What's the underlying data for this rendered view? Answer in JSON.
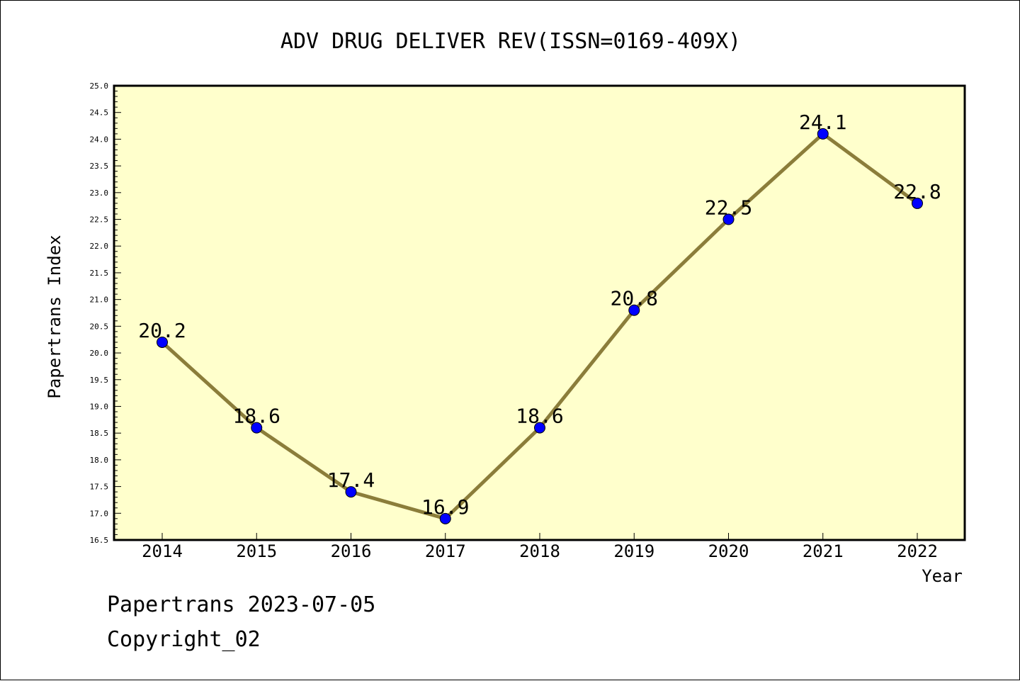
{
  "colors": {
    "plot_background": "#ffffcc",
    "line": "#8b7d3a",
    "marker": "#0000ff",
    "axis": "#000000"
  },
  "chart_data": {
    "type": "line",
    "title": "ADV DRUG DELIVER REV(ISSN=0169-409X)",
    "xlabel": "Year",
    "ylabel": "Papertrans Index",
    "categories": [
      "2014",
      "2015",
      "2016",
      "2017",
      "2018",
      "2019",
      "2020",
      "2021",
      "2022"
    ],
    "series": [
      {
        "values": [
          20.2,
          18.6,
          17.4,
          16.9,
          18.6,
          20.8,
          22.5,
          24.1,
          22.8
        ]
      }
    ],
    "data_labels": [
      "20.2",
      "18.6",
      "17.4",
      "16.9",
      "18.6",
      "20.8",
      "22.5",
      "24.1",
      "22.8"
    ],
    "ylim": [
      16.5,
      25.0
    ],
    "ytick_step": 0.5,
    "yticks": [
      "16.5",
      "17.0",
      "17.5",
      "18.0",
      "18.5",
      "19.0",
      "19.5",
      "20.0",
      "20.5",
      "21.0",
      "21.5",
      "22.0",
      "22.5",
      "23.0",
      "23.5",
      "24.0",
      "24.5",
      "25.0"
    ],
    "grid": false,
    "legend": "none"
  },
  "footer": {
    "date_line": "Papertrans 2023-07-05",
    "copyright": "Copyright_02"
  }
}
